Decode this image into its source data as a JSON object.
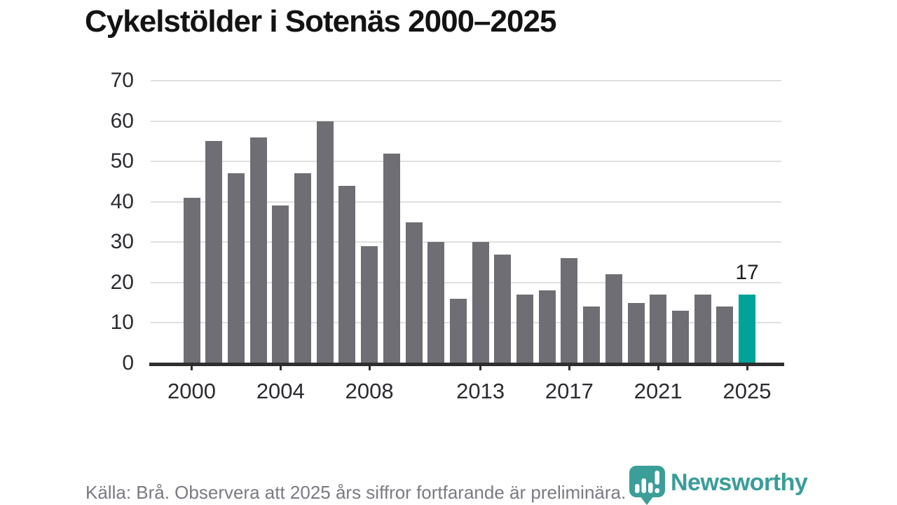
{
  "title": "Cykelstölder i Sotenäs 2000–2025",
  "chart_data": {
    "type": "bar",
    "title": "Cykelstölder i Sotenäs 2000–2025",
    "categories": [
      2000,
      2001,
      2002,
      2003,
      2004,
      2005,
      2006,
      2007,
      2008,
      2009,
      2010,
      2011,
      2012,
      2013,
      2014,
      2015,
      2016,
      2017,
      2018,
      2019,
      2020,
      2021,
      2022,
      2023,
      2024,
      2025
    ],
    "values": [
      41,
      55,
      47,
      56,
      39,
      47,
      60,
      44,
      29,
      52,
      35,
      30,
      16,
      30,
      27,
      17,
      18,
      26,
      14,
      22,
      15,
      17,
      13,
      17,
      14,
      17
    ],
    "ylim": [
      0,
      70
    ],
    "y_ticks": [
      0,
      10,
      20,
      30,
      40,
      50,
      60,
      70
    ],
    "x_tick_years": [
      "2000",
      "2004",
      "2008",
      "2013",
      "2017",
      "2021",
      "2025"
    ],
    "grid": "horizontal",
    "legend": "none",
    "bar_color": "#6E6E74",
    "highlight": {
      "year": 2025,
      "value": 17,
      "label": "17",
      "color": "#00A29A",
      "note": "preliminary"
    },
    "gridline_color": "#E0E0E0",
    "axis_color": "#2E2E2E"
  },
  "footer": {
    "source_note": "Källa: Brå. Observera att 2025 års siffror fortfarande är preliminära.",
    "logo": {
      "text": "Newsworthy",
      "color": "#389D98",
      "icon": "newsworthy-pin-barchart-icon"
    }
  }
}
